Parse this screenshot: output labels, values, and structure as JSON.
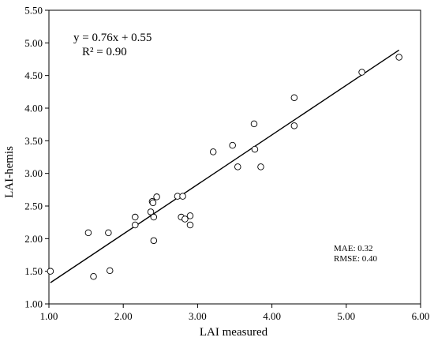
{
  "chart_data": {
    "type": "scatter",
    "xlabel": "LAI measured",
    "ylabel": "LAI-hemis",
    "xlim": [
      1.0,
      6.0
    ],
    "ylim": [
      1.0,
      5.5
    ],
    "xticks": [
      "1.00",
      "2.00",
      "3.00",
      "4.00",
      "5.00",
      "6.00"
    ],
    "yticks": [
      "1.00",
      "1.50",
      "2.00",
      "2.50",
      "3.00",
      "3.50",
      "4.00",
      "4.50",
      "5.00",
      "5.50"
    ],
    "grid": false,
    "points": [
      {
        "x": 1.02,
        "y": 1.5
      },
      {
        "x": 1.53,
        "y": 2.09
      },
      {
        "x": 1.6,
        "y": 1.42
      },
      {
        "x": 1.8,
        "y": 2.09
      },
      {
        "x": 1.82,
        "y": 1.51
      },
      {
        "x": 2.16,
        "y": 2.33
      },
      {
        "x": 2.16,
        "y": 2.21
      },
      {
        "x": 2.37,
        "y": 2.41
      },
      {
        "x": 2.39,
        "y": 2.57
      },
      {
        "x": 2.4,
        "y": 2.55
      },
      {
        "x": 2.41,
        "y": 2.33
      },
      {
        "x": 2.41,
        "y": 1.97
      },
      {
        "x": 2.45,
        "y": 2.64
      },
      {
        "x": 2.73,
        "y": 2.65
      },
      {
        "x": 2.78,
        "y": 2.33
      },
      {
        "x": 2.8,
        "y": 2.65
      },
      {
        "x": 2.83,
        "y": 2.3
      },
      {
        "x": 2.9,
        "y": 2.35
      },
      {
        "x": 2.9,
        "y": 2.21
      },
      {
        "x": 3.21,
        "y": 3.33
      },
      {
        "x": 3.47,
        "y": 3.43
      },
      {
        "x": 3.54,
        "y": 3.1
      },
      {
        "x": 3.76,
        "y": 3.76
      },
      {
        "x": 3.77,
        "y": 3.37
      },
      {
        "x": 3.85,
        "y": 3.1
      },
      {
        "x": 4.3,
        "y": 4.16
      },
      {
        "x": 4.3,
        "y": 3.73
      },
      {
        "x": 5.21,
        "y": 4.55
      },
      {
        "x": 5.71,
        "y": 4.78
      }
    ],
    "trendline": {
      "slope": 0.76,
      "intercept": 0.55,
      "x_start": 1.02,
      "x_end": 5.71
    },
    "annotations": {
      "equation": "y = 0.76x + 0.55",
      "r_squared": "R² = 0.90",
      "mae": "MAE: 0.32",
      "rmse": "RMSE: 0.40"
    }
  }
}
